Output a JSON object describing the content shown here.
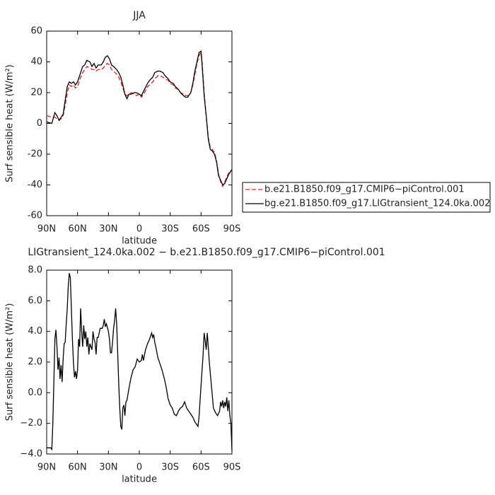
{
  "chart_data": [
    {
      "type": "line",
      "title": "JJA",
      "x_label": "latitude",
      "y_label": "Surf sensible heat (W/m²)",
      "x": [
        90,
        85,
        82,
        80,
        78,
        76,
        74,
        72,
        70,
        68,
        66,
        64,
        62,
        60,
        57,
        55,
        53,
        51,
        48,
        46,
        44,
        42,
        40,
        37,
        35,
        33,
        31,
        29,
        27,
        25,
        22,
        20,
        18,
        16,
        14,
        12,
        10,
        8,
        5,
        3,
        0,
        -2,
        -5,
        -8,
        -10,
        -13,
        -15,
        -18,
        -20,
        -23,
        -25,
        -28,
        -30,
        -33,
        -35,
        -38,
        -40,
        -43,
        -45,
        -47,
        -50,
        -52,
        -54,
        -56,
        -58,
        -60,
        -61,
        -63,
        -65,
        -67,
        -69,
        -71,
        -73,
        -75,
        -77,
        -79,
        -81,
        -83,
        -85,
        -87,
        -90
      ],
      "series": [
        {
          "name": "b.e21.B1850.f09_g17.CMIP6−piControl.001",
          "color": "#e8202a",
          "linestyle": "dashed",
          "values": [
            5,
            4,
            4,
            3,
            2,
            3,
            5,
            12,
            20,
            25,
            24,
            25,
            23,
            24,
            30,
            33,
            35,
            37,
            36,
            35,
            35,
            34,
            35,
            35,
            36,
            38,
            39,
            38,
            35,
            34,
            32,
            30,
            27,
            23,
            19,
            18,
            19,
            20,
            19,
            18,
            19,
            17,
            20,
            24,
            25,
            27,
            29,
            31,
            31,
            30,
            29,
            28,
            26,
            25,
            23,
            22,
            20,
            19,
            18,
            18,
            20,
            25,
            32,
            39,
            44,
            46,
            40,
            20,
            5,
            -9,
            -16,
            -17,
            -19,
            -24,
            -33,
            -38,
            -41,
            -38,
            -35,
            -32,
            -30
          ]
        },
        {
          "name": "bg.e21.B1850.f09_g17.LIGtransient_124.0ka.002",
          "color": "#000000",
          "linestyle": "solid",
          "values": [
            1,
            0,
            7,
            5,
            2,
            4,
            6,
            15,
            24,
            27,
            26,
            27,
            25,
            27,
            33,
            37,
            38,
            41,
            40,
            37,
            39,
            36,
            38,
            38,
            40,
            43,
            44,
            42,
            38,
            37,
            35,
            33,
            30,
            25,
            19,
            16,
            19,
            19,
            20,
            20,
            19,
            18,
            22,
            26,
            28,
            30,
            33,
            34,
            34,
            33,
            31,
            29,
            27,
            26,
            24,
            22,
            20,
            18,
            17,
            17,
            20,
            26,
            34,
            40,
            46,
            47,
            38,
            18,
            5,
            -10,
            -17,
            -18,
            -20,
            -25,
            -34,
            -37,
            -40,
            -39,
            -36,
            -33,
            -30
          ]
        }
      ],
      "xlim": [
        90,
        -90
      ],
      "xticks": [
        {
          "value": 90,
          "label": "90N"
        },
        {
          "value": 60,
          "label": "60N"
        },
        {
          "value": 30,
          "label": "30N"
        },
        0,
        {
          "value": -30,
          "label": "30S"
        },
        {
          "value": -60,
          "label": "60S"
        },
        {
          "value": -90,
          "label": "90S"
        }
      ],
      "ylim": [
        -60,
        60
      ],
      "yticks": [
        -60,
        -40,
        -20,
        0,
        20,
        40,
        60
      ],
      "legend": "right"
    },
    {
      "type": "line",
      "title": "LIGtransient_124.0ka.002 − b.e21.B1850.f09_g17.CMIP6−piControl.001",
      "x_label": "latitude",
      "y_label": "Surf sensible heat (W/m²)",
      "x": [
        90,
        86,
        85,
        84,
        82,
        81,
        80,
        79,
        78,
        77,
        76,
        75,
        74,
        73,
        72,
        71,
        70,
        69,
        68,
        67,
        66,
        65,
        64,
        63,
        62,
        61,
        60,
        59,
        58,
        57,
        56,
        55,
        54,
        53,
        52,
        51,
        50,
        49,
        48,
        47,
        46,
        45,
        44,
        43,
        42,
        41,
        40,
        38,
        36,
        35,
        34,
        33,
        32,
        30,
        29,
        28,
        27,
        26,
        25,
        24,
        23,
        22,
        21,
        20,
        19,
        18,
        17,
        16,
        15,
        14,
        13,
        12,
        10,
        8,
        6,
        4,
        2,
        0,
        -2,
        -3,
        -4,
        -6,
        -8,
        -10,
        -12,
        -13,
        -14,
        -15,
        -16,
        -18,
        -20,
        -22,
        -24,
        -26,
        -28,
        -30,
        -32,
        -34,
        -36,
        -38,
        -40,
        -42,
        -44,
        -46,
        -48,
        -50,
        -52,
        -54,
        -56,
        -57,
        -58,
        -60,
        -62,
        -63,
        -64,
        -65,
        -66,
        -67,
        -68,
        -70,
        -72,
        -74,
        -76,
        -78,
        -79,
        -80,
        -81,
        -82,
        -83,
        -84,
        -85,
        -86,
        -87,
        -88,
        -89,
        -90
      ],
      "color": "#000000",
      "values": [
        -3.6,
        -3.6,
        -3.7,
        -2,
        3.5,
        4.1,
        3,
        1.5,
        2.3,
        0.9,
        1.8,
        0.7,
        2.2,
        3.2,
        3.3,
        4.5,
        5.5,
        7,
        7.8,
        7.5,
        5.5,
        3.5,
        2,
        1,
        1.4,
        0.9,
        1.5,
        3.5,
        3,
        5.5,
        4,
        3,
        4.4,
        3.5,
        4,
        3,
        3.6,
        2.5,
        3.2,
        3,
        2.8,
        4,
        3.5,
        3.3,
        2.5,
        3.6,
        3.6,
        4.2,
        4.2,
        4.4,
        4.8,
        4.3,
        4.5,
        4,
        3.5,
        2.6,
        2.6,
        3.3,
        4.2,
        4.7,
        5.5,
        4.5,
        2.6,
        0.6,
        -1,
        -2.2,
        -2.4,
        -1,
        -0.8,
        -1.5,
        -0.6,
        -0.5,
        0.3,
        1,
        1.5,
        1.7,
        2.2,
        2,
        2.1,
        2.5,
        2.1,
        2.8,
        3.2,
        3.5,
        3.9,
        3.6,
        3.8,
        3.3,
        3,
        2.3,
        1.9,
        1.5,
        1,
        0.4,
        -0.4,
        -0.8,
        -1,
        -1.4,
        -1.5,
        -1.2,
        -1,
        -0.9,
        -0.6,
        -1,
        -1.2,
        -1.4,
        -1.6,
        -1.9,
        -2.1,
        -2.2,
        -1.6,
        0.5,
        2.5,
        3.9,
        3.4,
        2.8,
        3.9,
        3,
        2,
        0.5,
        -1,
        -1.3,
        -1.5,
        -1.2,
        -0.6,
        -0.9,
        -0.5,
        -1,
        -0.6,
        -0.9,
        -0.3,
        -1.2,
        -0.5,
        -1.5,
        -2,
        -3.8
      ],
      "xlim": [
        90,
        -90
      ],
      "xticks": [
        {
          "value": 90,
          "label": "90N"
        },
        {
          "value": 60,
          "label": "60N"
        },
        {
          "value": 30,
          "label": "30N"
        },
        0,
        {
          "value": -30,
          "label": "30S"
        },
        {
          "value": -60,
          "label": "60S"
        },
        {
          "value": -90,
          "label": "90S"
        }
      ],
      "ylim": [
        -4,
        8
      ],
      "yticks": [
        {
          "value": -4,
          "label": "−4.0"
        },
        {
          "value": -2,
          "label": "−2.0"
        },
        {
          "value": 0,
          "label": "0.0"
        },
        {
          "value": 2,
          "label": "2.0"
        },
        {
          "value": 4,
          "label": "4.0"
        },
        {
          "value": 6,
          "label": "6.0"
        },
        {
          "value": 8,
          "label": "8.0"
        }
      ]
    }
  ]
}
